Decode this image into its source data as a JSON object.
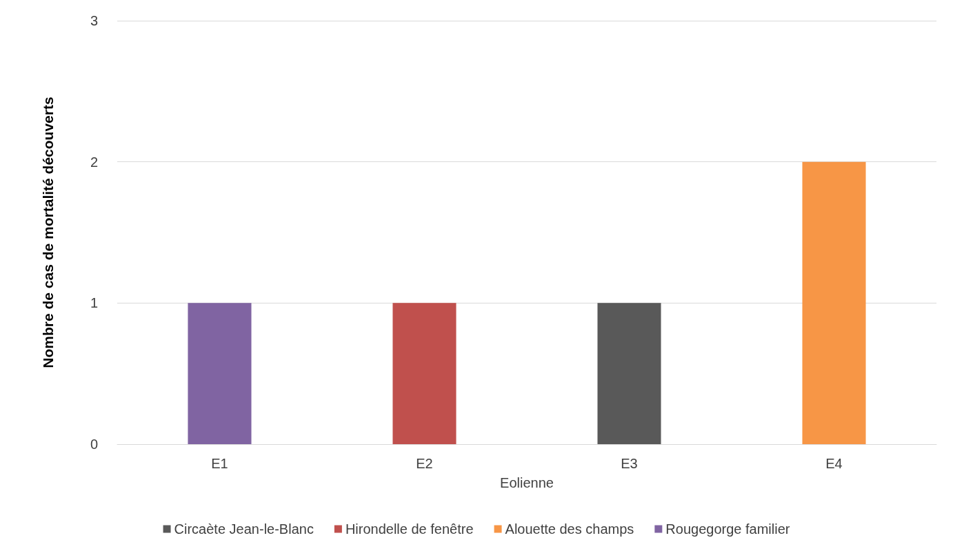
{
  "chart_data": {
    "type": "bar",
    "stacked": true,
    "xlabel": "Eolienne",
    "ylabel": "Nombre de cas de mortalité découverts",
    "categories": [
      "E1",
      "E2",
      "E3",
      "E4"
    ],
    "series": [
      {
        "name": "Circaète Jean-le-Blanc",
        "color": "#595959",
        "values": [
          null,
          null,
          1,
          null
        ]
      },
      {
        "name": "Hirondelle de fenêtre",
        "color": "#c0504d",
        "values": [
          null,
          1,
          null,
          null
        ]
      },
      {
        "name": "Alouette des champs",
        "color": "#f79646",
        "values": [
          null,
          null,
          null,
          2
        ]
      },
      {
        "name": "Rougegorge familier",
        "color": "#8064a2",
        "values": [
          1,
          null,
          null,
          null
        ]
      }
    ],
    "ylim": [
      0,
      3
    ],
    "yticks": [
      0,
      1,
      2,
      3
    ],
    "grid": "y",
    "legend": "bottom"
  }
}
